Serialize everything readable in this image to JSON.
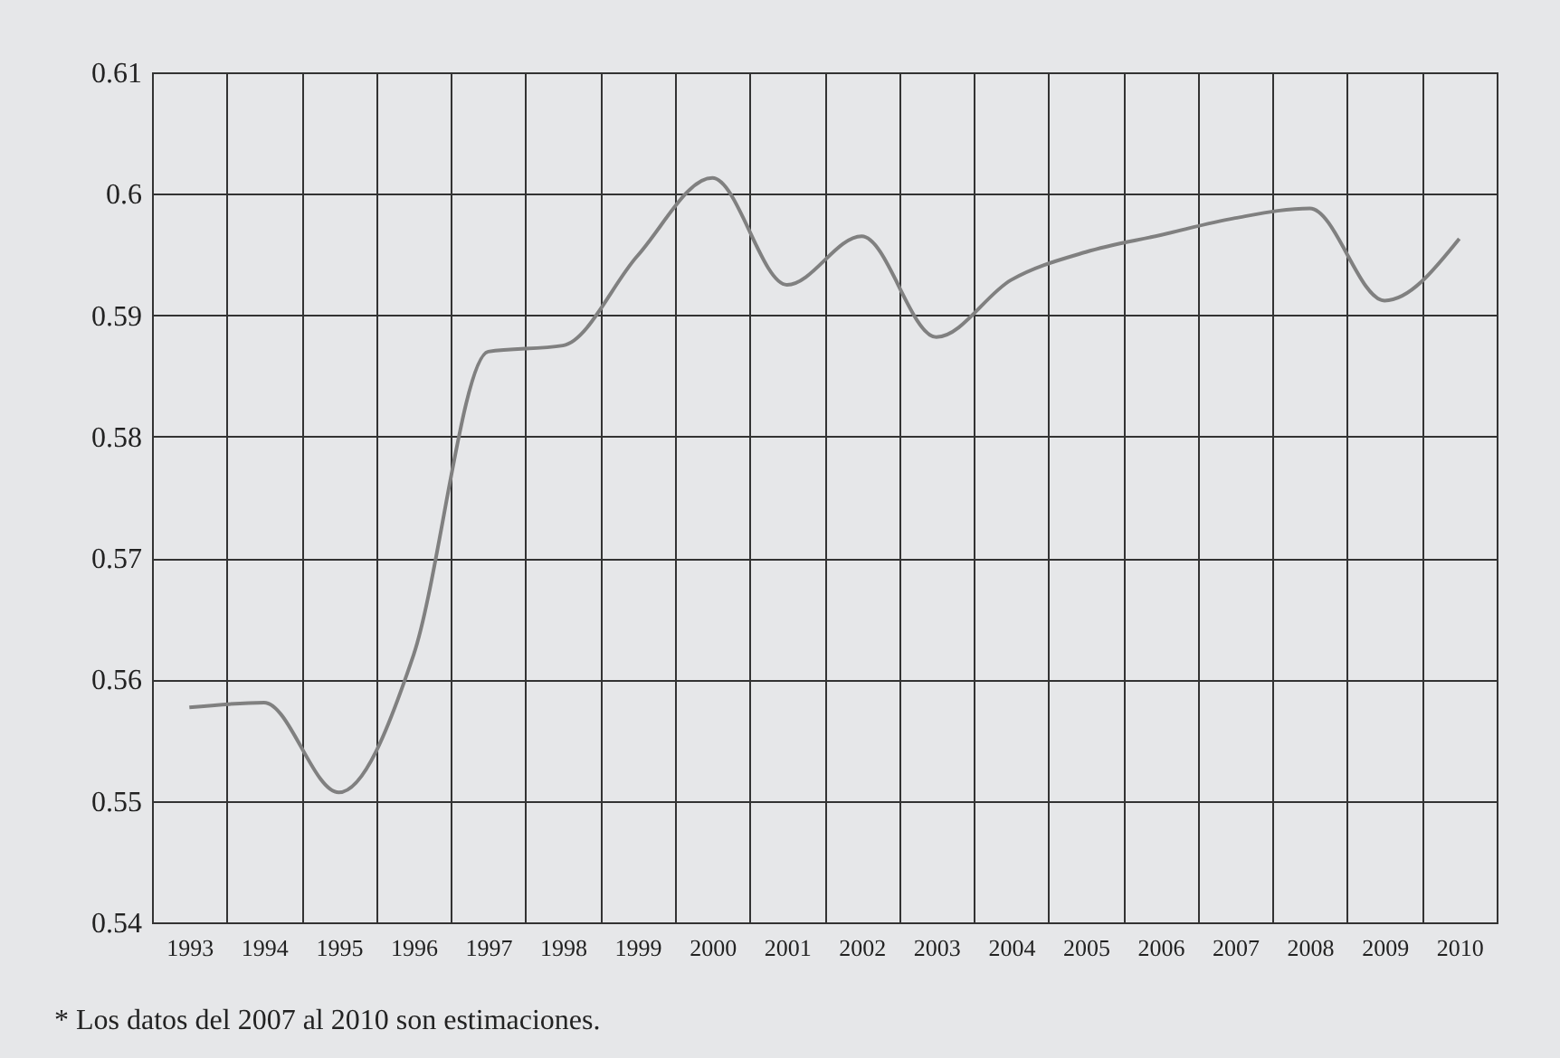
{
  "chart_data": {
    "type": "line",
    "categories": [
      "1993",
      "1994",
      "1995",
      "1996",
      "1997",
      "1998",
      "1999",
      "2000",
      "2001",
      "2002",
      "2003",
      "2004",
      "2005",
      "2006",
      "2007",
      "2008",
      "2009",
      "2010"
    ],
    "series": [
      {
        "color": "#808080",
        "values": [
          0.5577,
          0.5581,
          0.5507,
          0.562,
          0.587,
          0.5875,
          0.5949,
          0.6013,
          0.5925,
          0.5965,
          0.5882,
          0.5929,
          0.5952,
          0.5966,
          0.598,
          0.5988,
          0.5912,
          0.5963
        ]
      }
    ],
    "ylim": [
      0.54,
      0.61
    ],
    "yticks": [
      0.54,
      0.55,
      0.56,
      0.57,
      0.58,
      0.59,
      0.6,
      0.61
    ],
    "grid": true,
    "legend": false,
    "marker": "none",
    "line_style": "solid",
    "annotations": [
      "* Los datos del 2007 al 2010 son estimaciones."
    ]
  }
}
